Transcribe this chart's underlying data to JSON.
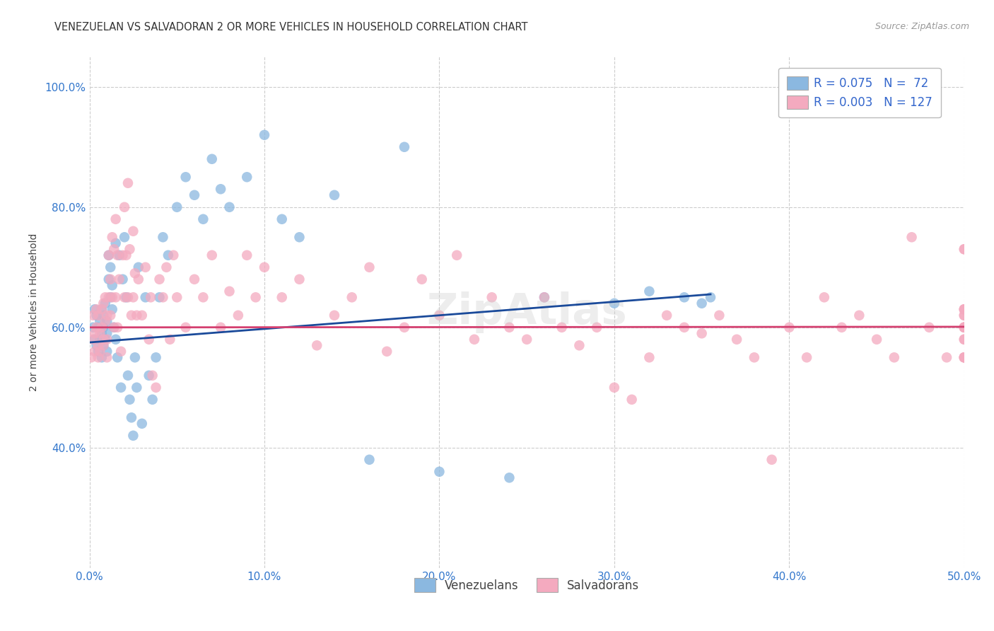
{
  "title": "VENEZUELAN VS SALVADORAN 2 OR MORE VEHICLES IN HOUSEHOLD CORRELATION CHART",
  "source": "Source: ZipAtlas.com",
  "xlabel_venezuelan": "Venezuelans",
  "xlabel_salvadoran": "Salvadorans",
  "ylabel": "2 or more Vehicles in Household",
  "xmin": 0.0,
  "xmax": 0.5,
  "ymin": 0.2,
  "ymax": 1.05,
  "r_venezuelan": 0.075,
  "n_venezuelan": 72,
  "r_salvadoran": 0.003,
  "n_salvadoran": 127,
  "color_blue": "#8BB8E0",
  "color_pink": "#F4AABF",
  "line_color_blue": "#1A4A9A",
  "line_color_pink": "#D44070",
  "yticks": [
    0.4,
    0.6,
    0.8,
    1.0
  ],
  "xticks": [
    0.0,
    0.1,
    0.2,
    0.3,
    0.4,
    0.5
  ],
  "blue_line_x": [
    0.0,
    0.355
  ],
  "blue_line_y": [
    0.575,
    0.655
  ],
  "pink_line_x": [
    0.0,
    0.5
  ],
  "pink_line_y": [
    0.6,
    0.601
  ],
  "ven_x": [
    0.002,
    0.003,
    0.003,
    0.004,
    0.004,
    0.005,
    0.005,
    0.006,
    0.006,
    0.007,
    0.007,
    0.007,
    0.008,
    0.008,
    0.008,
    0.009,
    0.009,
    0.01,
    0.01,
    0.01,
    0.011,
    0.011,
    0.012,
    0.012,
    0.013,
    0.013,
    0.014,
    0.015,
    0.015,
    0.016,
    0.017,
    0.018,
    0.019,
    0.02,
    0.021,
    0.022,
    0.023,
    0.024,
    0.025,
    0.026,
    0.027,
    0.028,
    0.03,
    0.032,
    0.034,
    0.036,
    0.038,
    0.04,
    0.042,
    0.045,
    0.05,
    0.055,
    0.06,
    0.065,
    0.07,
    0.075,
    0.08,
    0.09,
    0.1,
    0.11,
    0.12,
    0.14,
    0.16,
    0.18,
    0.2,
    0.24,
    0.26,
    0.3,
    0.32,
    0.34,
    0.35,
    0.355
  ],
  "ven_y": [
    0.6,
    0.58,
    0.63,
    0.57,
    0.62,
    0.6,
    0.56,
    0.61,
    0.58,
    0.63,
    0.59,
    0.55,
    0.62,
    0.6,
    0.57,
    0.64,
    0.58,
    0.61,
    0.59,
    0.56,
    0.68,
    0.72,
    0.65,
    0.7,
    0.63,
    0.67,
    0.6,
    0.74,
    0.58,
    0.55,
    0.72,
    0.5,
    0.68,
    0.75,
    0.65,
    0.52,
    0.48,
    0.45,
    0.42,
    0.55,
    0.5,
    0.7,
    0.44,
    0.65,
    0.52,
    0.48,
    0.55,
    0.65,
    0.75,
    0.72,
    0.8,
    0.85,
    0.82,
    0.78,
    0.88,
    0.83,
    0.8,
    0.85,
    0.92,
    0.78,
    0.75,
    0.82,
    0.38,
    0.9,
    0.36,
    0.35,
    0.65,
    0.64,
    0.66,
    0.65,
    0.64,
    0.65
  ],
  "sal_x": [
    0.001,
    0.002,
    0.002,
    0.003,
    0.003,
    0.004,
    0.004,
    0.005,
    0.005,
    0.005,
    0.006,
    0.006,
    0.007,
    0.007,
    0.008,
    0.008,
    0.008,
    0.009,
    0.009,
    0.01,
    0.01,
    0.01,
    0.011,
    0.011,
    0.012,
    0.012,
    0.013,
    0.013,
    0.014,
    0.014,
    0.015,
    0.015,
    0.016,
    0.016,
    0.017,
    0.018,
    0.019,
    0.02,
    0.02,
    0.021,
    0.022,
    0.022,
    0.023,
    0.024,
    0.025,
    0.025,
    0.026,
    0.027,
    0.028,
    0.03,
    0.032,
    0.034,
    0.035,
    0.036,
    0.038,
    0.04,
    0.042,
    0.044,
    0.046,
    0.048,
    0.05,
    0.055,
    0.06,
    0.065,
    0.07,
    0.075,
    0.08,
    0.085,
    0.09,
    0.095,
    0.1,
    0.11,
    0.12,
    0.13,
    0.14,
    0.15,
    0.16,
    0.17,
    0.18,
    0.19,
    0.2,
    0.21,
    0.22,
    0.23,
    0.24,
    0.25,
    0.26,
    0.27,
    0.28,
    0.29,
    0.3,
    0.31,
    0.32,
    0.33,
    0.34,
    0.35,
    0.36,
    0.37,
    0.38,
    0.39,
    0.4,
    0.41,
    0.42,
    0.43,
    0.44,
    0.45,
    0.46,
    0.47,
    0.48,
    0.49,
    0.5,
    0.51,
    0.52,
    0.53,
    0.54,
    0.55,
    0.56,
    0.57,
    0.58,
    0.59,
    0.6,
    0.61,
    0.62,
    0.63,
    0.64,
    0.65,
    0.66
  ],
  "sal_y": [
    0.55,
    0.58,
    0.62,
    0.59,
    0.56,
    0.63,
    0.6,
    0.57,
    0.62,
    0.55,
    0.59,
    0.56,
    0.63,
    0.6,
    0.57,
    0.64,
    0.58,
    0.61,
    0.65,
    0.62,
    0.58,
    0.55,
    0.72,
    0.65,
    0.68,
    0.62,
    0.75,
    0.65,
    0.73,
    0.6,
    0.78,
    0.65,
    0.72,
    0.6,
    0.68,
    0.56,
    0.72,
    0.8,
    0.65,
    0.72,
    0.84,
    0.65,
    0.73,
    0.62,
    0.76,
    0.65,
    0.69,
    0.62,
    0.68,
    0.62,
    0.7,
    0.58,
    0.65,
    0.52,
    0.5,
    0.68,
    0.65,
    0.7,
    0.58,
    0.72,
    0.65,
    0.6,
    0.68,
    0.65,
    0.72,
    0.6,
    0.66,
    0.62,
    0.72,
    0.65,
    0.7,
    0.65,
    0.68,
    0.57,
    0.62,
    0.65,
    0.7,
    0.56,
    0.6,
    0.68,
    0.62,
    0.72,
    0.58,
    0.65,
    0.6,
    0.58,
    0.65,
    0.6,
    0.57,
    0.6,
    0.5,
    0.48,
    0.55,
    0.62,
    0.6,
    0.59,
    0.62,
    0.58,
    0.55,
    0.38,
    0.6,
    0.55,
    0.65,
    0.6,
    0.62,
    0.58,
    0.55,
    0.75,
    0.6,
    0.55,
    0.63,
    0.6,
    0.62,
    0.58,
    0.55,
    0.73,
    0.6,
    0.55,
    0.63,
    0.6,
    0.62,
    0.58,
    0.55,
    0.73,
    0.6,
    0.55,
    0.63
  ]
}
